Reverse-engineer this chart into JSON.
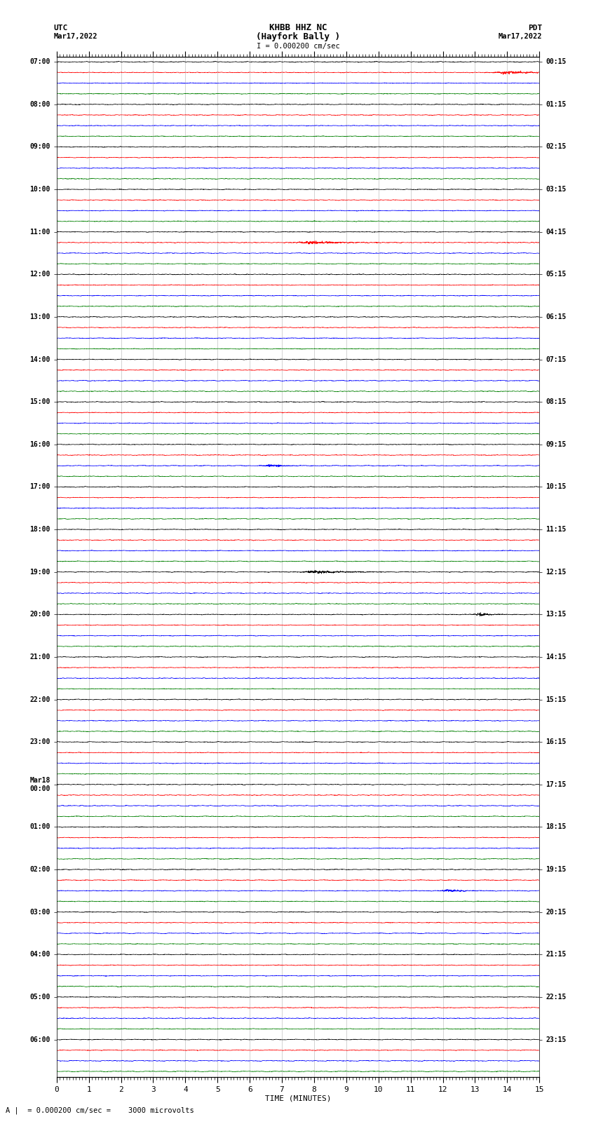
{
  "title_line1": "KHBB HHZ NC",
  "title_line2": "(Hayfork Bally )",
  "scale_text": "I = 0.000200 cm/sec",
  "footer_text": "A |  = 0.000200 cm/sec =    3000 microvolts",
  "xlabel": "TIME (MINUTES)",
  "utc_hour_labels": [
    "07:00",
    "08:00",
    "09:00",
    "10:00",
    "11:00",
    "12:00",
    "13:00",
    "14:00",
    "15:00",
    "16:00",
    "17:00",
    "18:00",
    "19:00",
    "20:00",
    "21:00",
    "22:00",
    "23:00",
    "Mar18\n00:00",
    "01:00",
    "02:00",
    "03:00",
    "04:00",
    "05:00",
    "06:00"
  ],
  "pdt_hour_labels": [
    "00:15",
    "01:15",
    "02:15",
    "03:15",
    "04:15",
    "05:15",
    "06:15",
    "07:15",
    "08:15",
    "09:15",
    "10:15",
    "11:15",
    "12:15",
    "13:15",
    "14:15",
    "15:15",
    "16:15",
    "17:15",
    "18:15",
    "19:15",
    "20:15",
    "21:15",
    "22:15",
    "23:15"
  ],
  "n_hours": 24,
  "traces_per_hour": 4,
  "n_minutes": 15,
  "colors": [
    "black",
    "red",
    "blue",
    "green"
  ],
  "background_color": "white",
  "noise_amplitude": 0.03,
  "line_width": 0.5,
  "fig_width": 8.5,
  "fig_height": 16.13,
  "dpi": 100,
  "samples_per_minute": 200
}
